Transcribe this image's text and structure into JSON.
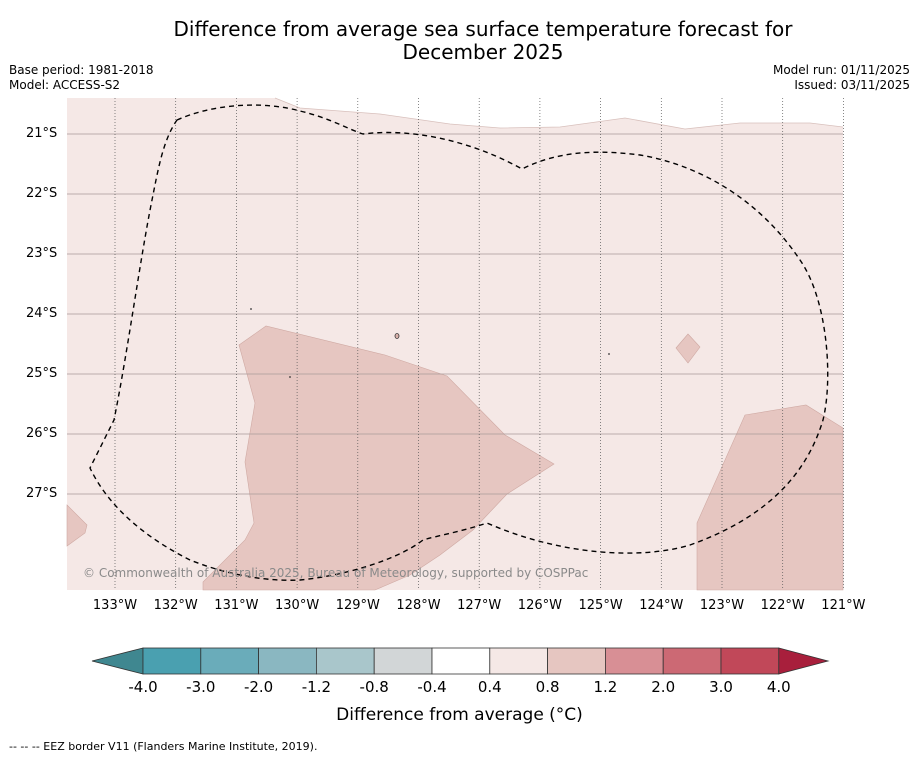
{
  "title": "Difference from average sea surface temperature forecast for December 2025",
  "title_line1": "Difference from average sea surface temperature forecast for",
  "title_line2": "December 2025",
  "meta": {
    "base_period": "Base period: 1981-2018",
    "model": "Model: ACCESS-S2",
    "model_run": "Model run: 01/11/2025",
    "issued": "Issued: 03/11/2025"
  },
  "map": {
    "lat_ticks": [
      "21°S",
      "22°S",
      "23°S",
      "24°S",
      "25°S",
      "26°S",
      "27°S"
    ],
    "lon_ticks": [
      "133°W",
      "132°W",
      "131°W",
      "130°W",
      "129°W",
      "128°W",
      "127°W",
      "126°W",
      "125°W",
      "124°W",
      "123°W",
      "122°W",
      "121°W"
    ],
    "copyright": "© Commonwealth of Australia 2025, Bureau of Meteorology, supported by COSPPac",
    "colors": {
      "background_anomaly": "#f5e8e6",
      "warm_anomaly": "#e6c6c1",
      "eez_line": "#000000"
    }
  },
  "colorbar": {
    "labels": [
      "-4.0",
      "-3.0",
      "-2.0",
      "-1.2",
      "-0.8",
      "-0.4",
      "0.4",
      "0.8",
      "1.2",
      "2.0",
      "3.0",
      "4.0"
    ],
    "colors": [
      "#3f8790",
      "#4aa0b0",
      "#6aacba",
      "#8ab7c1",
      "#a9c6cb",
      "#d2d6d7",
      "#ffffff",
      "#f5e8e6",
      "#e6c6c1",
      "#d88f95",
      "#cc6974",
      "#c14859",
      "#a81f3c"
    ],
    "title": "Difference from average (°C)"
  },
  "footer": "--  --  -- EEZ border V11 (Flanders Marine Institute, 2019)."
}
